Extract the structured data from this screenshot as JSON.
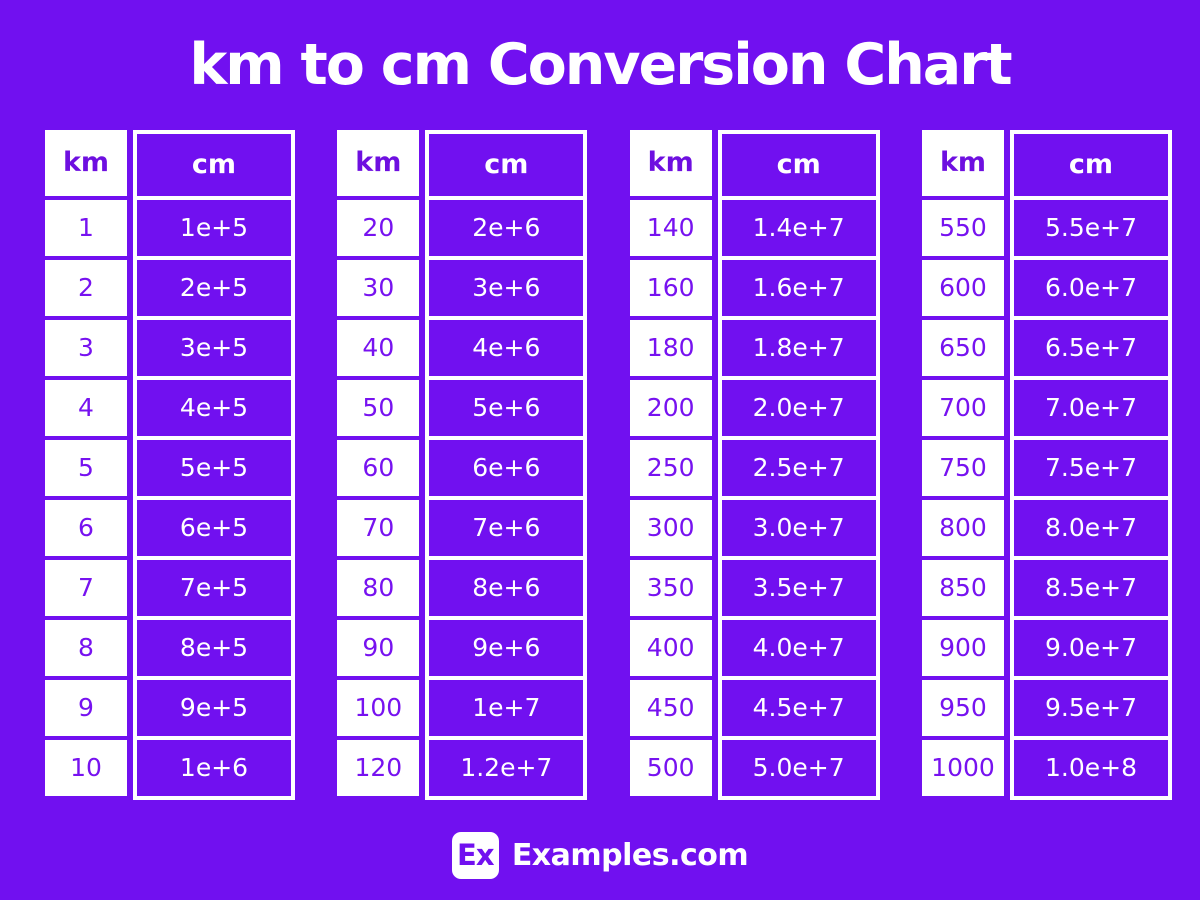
{
  "page": {
    "title": "km to cm Conversion Chart"
  },
  "colors": {
    "background": "#7110F0",
    "cell_purple": "#7110F0",
    "km_text_purple": "#7712F0",
    "white": "#FFFFFF"
  },
  "footer": {
    "logo_text": "Ex",
    "site_name": "Examples.com"
  },
  "chart_data": {
    "type": "table",
    "title": "km to cm Conversion Chart",
    "columns": [
      "km",
      "cm"
    ],
    "tables": [
      {
        "rows": [
          [
            "1",
            "1e+5"
          ],
          [
            "2",
            "2e+5"
          ],
          [
            "3",
            "3e+5"
          ],
          [
            "4",
            "4e+5"
          ],
          [
            "5",
            "5e+5"
          ],
          [
            "6",
            "6e+5"
          ],
          [
            "7",
            "7e+5"
          ],
          [
            "8",
            "8e+5"
          ],
          [
            "9",
            "9e+5"
          ],
          [
            "10",
            "1e+6"
          ]
        ]
      },
      {
        "rows": [
          [
            "20",
            "2e+6"
          ],
          [
            "30",
            "3e+6"
          ],
          [
            "40",
            "4e+6"
          ],
          [
            "50",
            "5e+6"
          ],
          [
            "60",
            "6e+6"
          ],
          [
            "70",
            "7e+6"
          ],
          [
            "80",
            "8e+6"
          ],
          [
            "90",
            "9e+6"
          ],
          [
            "100",
            "1e+7"
          ],
          [
            "120",
            "1.2e+7"
          ]
        ]
      },
      {
        "rows": [
          [
            "140",
            "1.4e+7"
          ],
          [
            "160",
            "1.6e+7"
          ],
          [
            "180",
            "1.8e+7"
          ],
          [
            "200",
            "2.0e+7"
          ],
          [
            "250",
            "2.5e+7"
          ],
          [
            "300",
            "3.0e+7"
          ],
          [
            "350",
            "3.5e+7"
          ],
          [
            "400",
            "4.0e+7"
          ],
          [
            "450",
            "4.5e+7"
          ],
          [
            "500",
            "5.0e+7"
          ]
        ]
      },
      {
        "rows": [
          [
            "550",
            "5.5e+7"
          ],
          [
            "600",
            "6.0e+7"
          ],
          [
            "650",
            "6.5e+7"
          ],
          [
            "700",
            "7.0e+7"
          ],
          [
            "750",
            "7.5e+7"
          ],
          [
            "800",
            "8.0e+7"
          ],
          [
            "850",
            "8.5e+7"
          ],
          [
            "900",
            "9.0e+7"
          ],
          [
            "950",
            "9.5e+7"
          ],
          [
            "1000",
            "1.0e+8"
          ]
        ]
      }
    ]
  }
}
